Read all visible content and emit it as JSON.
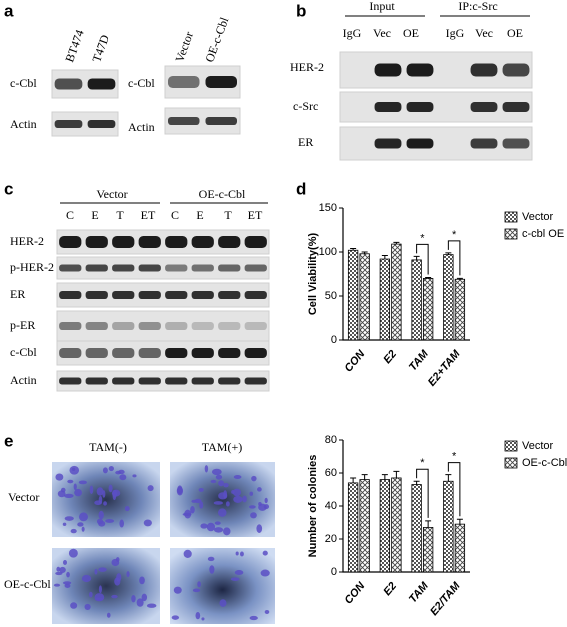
{
  "panel_labels": [
    "a",
    "b",
    "c",
    "d",
    "e"
  ],
  "blot_a": {
    "left_lanes": [
      "BT474",
      "T47D"
    ],
    "right_lanes": [
      "Vector",
      "OE-c-Cbl"
    ],
    "rows": [
      "c-Cbl",
      "Actin"
    ]
  },
  "blot_b": {
    "groups": [
      "Input",
      "IP:c-Src"
    ],
    "lanes": [
      "IgG",
      "Vec",
      "OE",
      "IgG",
      "Vec",
      "OE"
    ],
    "rows": [
      "HER-2",
      "c-Src",
      "ER"
    ]
  },
  "blot_c": {
    "groups": [
      "Vector",
      "OE-c-Cbl"
    ],
    "lanes": [
      "C",
      "E",
      "T",
      "ET",
      "C",
      "E",
      "T",
      "ET"
    ],
    "rows": [
      "HER-2",
      "p-HER-2",
      "ER",
      "p-ER",
      "c-Cbl",
      "Actin"
    ]
  },
  "colony_e": {
    "columns": [
      "TAM(-)",
      "TAM(+)"
    ],
    "rows": [
      "Vector",
      "OE-c-Cbl"
    ]
  },
  "chart_data": [
    {
      "type": "bar",
      "y_label": "Cell Viability(%)",
      "categories": [
        "CON",
        "E2",
        "TAM",
        "E2+TAM"
      ],
      "series": [
        {
          "name": "Vector",
          "color": "#8c8c8c",
          "values": [
            102,
            92,
            91,
            97
          ],
          "errors": [
            2,
            4,
            4,
            2
          ]
        },
        {
          "name": "c-cbl OE",
          "color": "#bdbdbd",
          "values": [
            98,
            109,
            70,
            69
          ],
          "errors": [
            2,
            2,
            1,
            1
          ]
        }
      ],
      "significance": [
        null,
        null,
        "*",
        "*"
      ],
      "ylim": [
        0,
        150
      ],
      "yticks": [
        0,
        50,
        100,
        150
      ],
      "grid": false
    },
    {
      "type": "bar",
      "y_label": "Number of colonies",
      "categories": [
        "CON",
        "E2",
        "TAM",
        "E2/TAM"
      ],
      "series": [
        {
          "name": "Vector",
          "color": "#8c8c8c",
          "values": [
            54,
            56,
            53,
            55
          ],
          "errors": [
            3,
            3,
            2,
            4
          ]
        },
        {
          "name": "OE-c-Cbl",
          "color": "#bdbdbd",
          "values": [
            56,
            57,
            27,
            29
          ],
          "errors": [
            3,
            4,
            4,
            3
          ]
        }
      ],
      "significance": [
        null,
        null,
        "*",
        "*"
      ],
      "ylim": [
        0,
        80
      ],
      "yticks": [
        0,
        20,
        40,
        60,
        80
      ],
      "grid": false
    }
  ]
}
